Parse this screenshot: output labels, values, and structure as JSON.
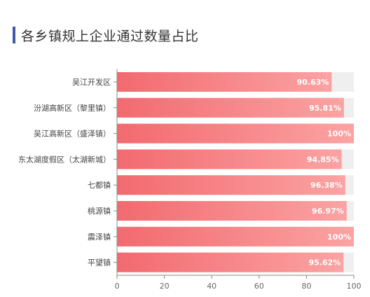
{
  "header": {
    "title": "各乡镇规上企业通过数量占比"
  },
  "colors": {
    "accent": "#3b5ba8",
    "bar_start": "#f26a6f",
    "bar_end": "#fba3a3",
    "track": "#efefef",
    "axis": "#888888"
  },
  "chart_data": {
    "type": "bar",
    "orientation": "horizontal",
    "title": "各乡镇规上企业通过数量占比",
    "categories": [
      "吴江开发区",
      "汾湖高新区（黎里镇）",
      "吴江高新区（盛泽镇）",
      "东太湖度假区（太湖新城）",
      "七都镇",
      "桃源镇",
      "震泽镇",
      "平望镇"
    ],
    "values": [
      90.63,
      95.81,
      100,
      94.85,
      96.38,
      96.97,
      100,
      95.62
    ],
    "value_labels": [
      "90.63%",
      "95.81%",
      "100%",
      "94.85%",
      "96.38%",
      "96.97%",
      "100%",
      "95.62%"
    ],
    "xlim": [
      0,
      100
    ],
    "xticks": [
      "0",
      "20",
      "40",
      "60",
      "80",
      "100"
    ],
    "xlabel": "",
    "ylabel": "",
    "grid": false,
    "legend": "none"
  }
}
